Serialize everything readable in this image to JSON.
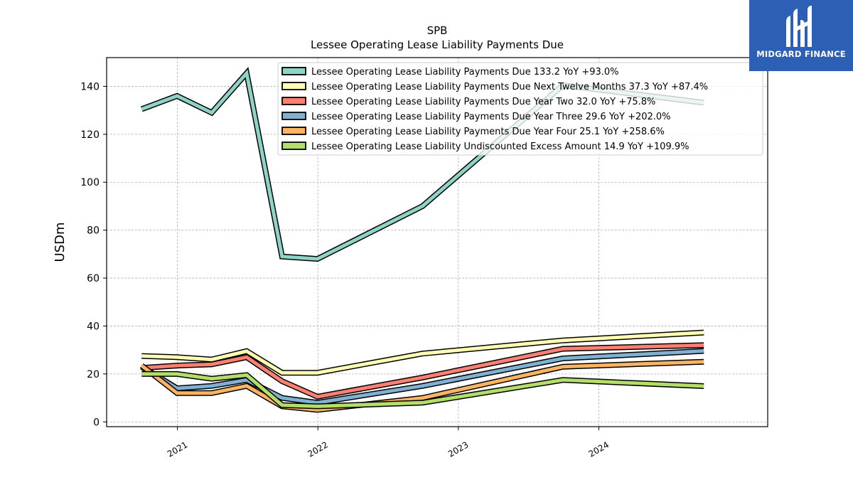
{
  "brand": {
    "name": "MIDGARD FINANCE",
    "color": "#2d5fb4"
  },
  "chart_data": {
    "type": "line",
    "title": "SPB",
    "subtitle": "Lessee Operating Lease Liability Payments Due",
    "ylabel": "USDm",
    "xlabel": "",
    "ylim": [
      -2,
      152
    ],
    "xlim": [
      "2020-07-01",
      "2025-03-15"
    ],
    "grid": true,
    "legend_position": "top-right",
    "y_ticks": [
      0,
      20,
      40,
      60,
      80,
      100,
      120,
      140
    ],
    "x_ticks": [
      {
        "date": "2021-01-01",
        "label": "2021"
      },
      {
        "date": "2022-01-01",
        "label": "2022"
      },
      {
        "date": "2023-01-01",
        "label": "2023"
      },
      {
        "date": "2024-01-01",
        "label": "2024"
      }
    ],
    "x": [
      "2020-09-30",
      "2020-12-31",
      "2021-03-31",
      "2021-06-30",
      "2021-09-30",
      "2021-12-31",
      "2022-09-30",
      "2023-09-30",
      "2024-09-30"
    ],
    "series": [
      {
        "name": "Lessee Operating Lease Liability Payments Due",
        "legend": "Lessee Operating Lease Liability Payments Due  133.2 YoY +93.0%",
        "color": "#8dd3c7",
        "values": [
          130.5,
          136.0,
          129.0,
          145.5,
          69.0,
          68.0,
          90.0,
          140.5,
          133.2
        ]
      },
      {
        "name": "Lessee Operating Lease Liability Payments Due Next Twelve Months",
        "legend": "Lessee Operating Lease Liability Payments Due Next Twelve Months  37.3 YoY +87.4%",
        "color": "#ffffb3",
        "values": [
          27.5,
          27.0,
          26.0,
          29.5,
          20.5,
          20.5,
          28.5,
          34.0,
          37.3
        ]
      },
      {
        "name": "Lessee Operating Lease Liability Payments Due Year Two",
        "legend": "Lessee Operating Lease Liability Payments Due Year Two  32.0 YoY +75.8%",
        "color": "#fb8072",
        "values": [
          22.5,
          23.5,
          24.0,
          27.0,
          17.0,
          10.5,
          18.5,
          30.5,
          32.0
        ]
      },
      {
        "name": "Lessee Operating Lease Liability Payments Due Year Three",
        "legend": "Lessee Operating Lease Liability Payments Due Year Three  29.6 YoY +202.0%",
        "color": "#80b1d3",
        "values": [
          23.0,
          14.0,
          15.0,
          17.5,
          10.0,
          8.0,
          15.0,
          26.5,
          29.6
        ]
      },
      {
        "name": "Lessee Operating Lease Liability Payments Due Year Four",
        "legend": "Lessee Operating Lease Liability Payments Due Year Four  25.1 YoY +258.6%",
        "color": "#fdb462",
        "values": [
          23.5,
          12.0,
          12.0,
          15.0,
          6.5,
          5.0,
          10.0,
          23.0,
          25.1
        ]
      },
      {
        "name": "Lessee Operating Lease Liability Undiscounted Excess Amount",
        "legend": "Lessee Operating Lease Liability Undiscounted Excess Amount  14.9 YoY +109.9%",
        "color": "#b3de69",
        "values": [
          20.0,
          20.0,
          18.0,
          19.5,
          7.0,
          6.5,
          8.0,
          17.5,
          14.9
        ]
      }
    ]
  }
}
